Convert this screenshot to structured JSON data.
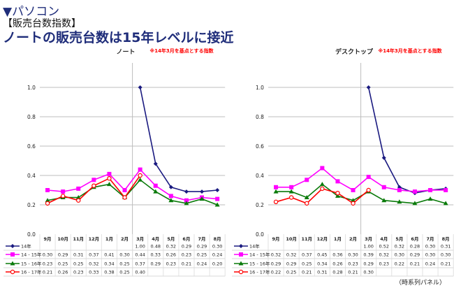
{
  "header": {
    "section": "▼パソコン",
    "subtitle": "【販売台数指数】",
    "headline": "ノートの販売台数は15年レベルに接近"
  },
  "footnote": "（時系列パネル）",
  "chart_data": [
    {
      "type": "line",
      "title": "ノート",
      "note": "※14年3月を基点とする指数",
      "ylim": [
        0,
        1.0
      ],
      "yticks": [
        "0.0",
        "0.2",
        "0.4",
        "0.6",
        "0.8",
        "1.0"
      ],
      "categories": [
        "9月",
        "10月",
        "11月",
        "12月",
        "1月",
        "2月",
        "3月",
        "4月",
        "5月",
        "6月",
        "7月",
        "8月"
      ],
      "series": [
        {
          "name": "14年",
          "color": "#1a1a80",
          "marker": "diamond",
          "values": [
            null,
            null,
            null,
            null,
            null,
            null,
            1.0,
            0.48,
            0.32,
            0.29,
            0.29,
            0.3
          ]
        },
        {
          "name": "14 - 15年",
          "color": "#ff00ff",
          "marker": "square",
          "values": [
            0.3,
            0.29,
            0.31,
            0.37,
            0.41,
            0.3,
            0.44,
            0.33,
            0.26,
            0.23,
            0.25,
            0.24
          ]
        },
        {
          "name": "15 - 16年",
          "color": "#0a7a0a",
          "marker": "triangle",
          "values": [
            0.23,
            0.25,
            0.25,
            0.32,
            0.34,
            0.25,
            0.37,
            0.29,
            0.23,
            0.21,
            0.24,
            0.2
          ]
        },
        {
          "name": "16 - 17年",
          "color": "#ff0000",
          "marker": "circle",
          "values": [
            0.21,
            0.26,
            0.23,
            0.33,
            0.38,
            0.25,
            0.4,
            null,
            null,
            null,
            null,
            null
          ]
        }
      ]
    },
    {
      "type": "line",
      "title": "デスクトップ",
      "note": "※14年3月を基点とする指数",
      "ylim": [
        0,
        1.0
      ],
      "yticks": [
        "0.0",
        "0.2",
        "0.4",
        "0.6",
        "0.8",
        "1.0"
      ],
      "categories": [
        "9月",
        "10月",
        "11月",
        "12月",
        "1月",
        "2月",
        "3月",
        "4月",
        "5月",
        "6月",
        "7月",
        "8月"
      ],
      "series": [
        {
          "name": "14年",
          "color": "#1a1a80",
          "marker": "diamond",
          "values": [
            null,
            null,
            null,
            null,
            null,
            null,
            1.0,
            0.52,
            0.32,
            0.28,
            0.3,
            0.31
          ]
        },
        {
          "name": "14 - 15年",
          "color": "#ff00ff",
          "marker": "square",
          "values": [
            0.32,
            0.32,
            0.37,
            0.45,
            0.36,
            0.3,
            0.39,
            0.32,
            0.3,
            0.29,
            0.3,
            0.3
          ]
        },
        {
          "name": "15 - 16年",
          "color": "#0a7a0a",
          "marker": "triangle",
          "values": [
            0.29,
            0.29,
            0.25,
            0.34,
            0.26,
            0.23,
            0.29,
            0.23,
            0.22,
            0.21,
            0.24,
            0.21
          ]
        },
        {
          "name": "16 - 17年",
          "color": "#ff0000",
          "marker": "circle",
          "values": [
            0.22,
            0.25,
            0.21,
            0.31,
            0.28,
            0.21,
            0.3,
            null,
            null,
            null,
            null,
            null
          ]
        }
      ]
    }
  ]
}
